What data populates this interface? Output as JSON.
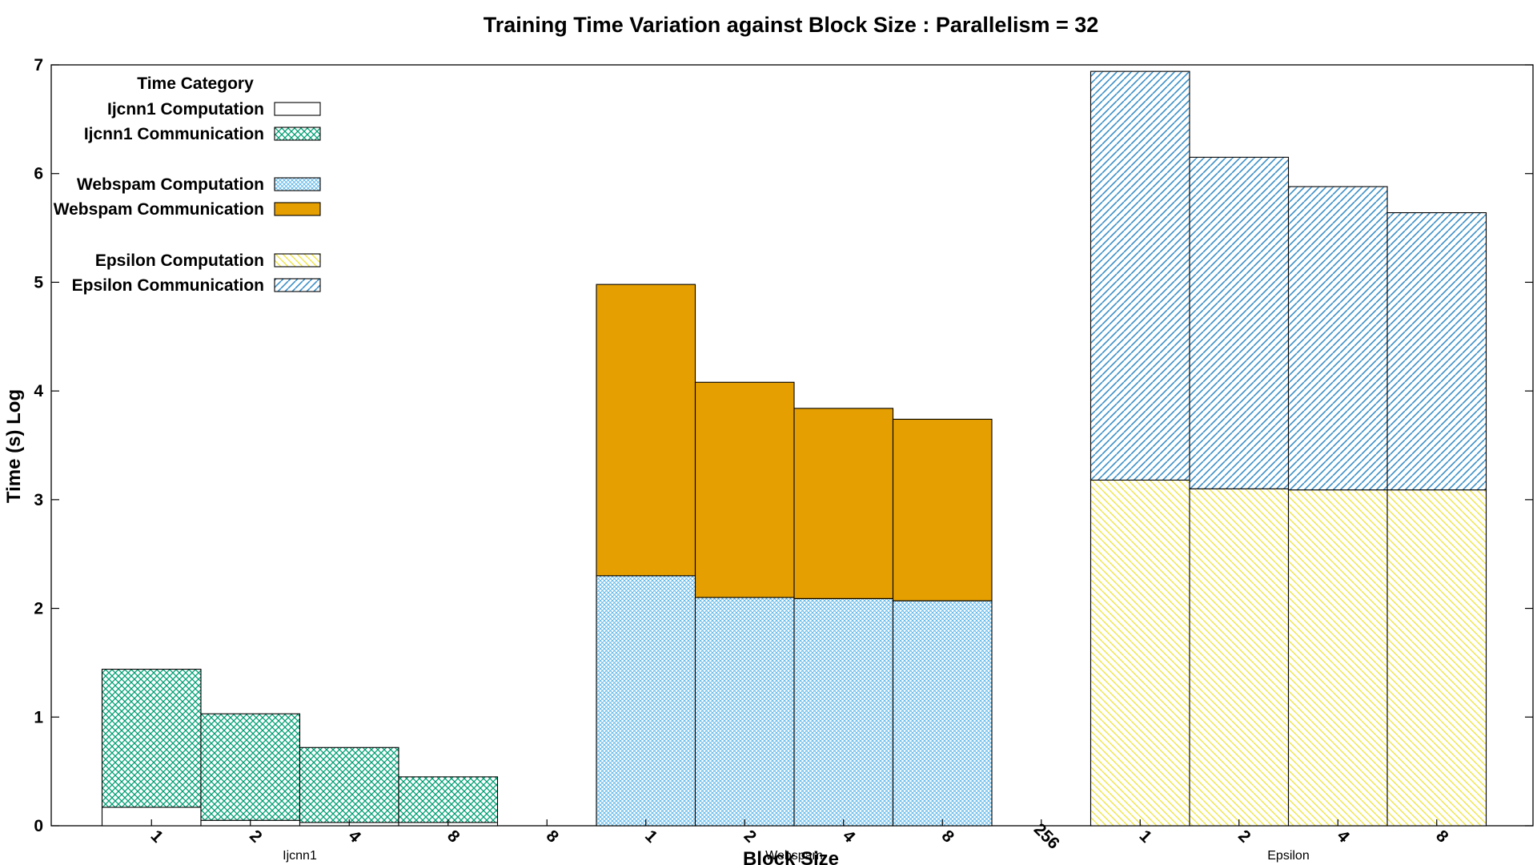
{
  "chart_data": {
    "type": "bar",
    "stacked": true,
    "title": "Training Time Variation against Block Size : Parallelism = 32",
    "xlabel": "Block Size",
    "ylabel": "Time (s) Log",
    "ylim": [
      0,
      7
    ],
    "yticks": [
      "0",
      "1",
      "2",
      "3",
      "4",
      "5",
      "6",
      "7"
    ],
    "legend": {
      "title": "Time Category",
      "position": "top-left"
    },
    "groups": [
      {
        "name": "Ijcnn1",
        "categories": [
          "1",
          "2",
          "4",
          "8"
        ],
        "extra_tick": "8",
        "series": [
          {
            "name": "Ijcnn1 Computation",
            "values": [
              0.17,
              0.05,
              0.03,
              0.03
            ]
          },
          {
            "name": "Ijcnn1 Communication",
            "values": [
              1.27,
              0.98,
              0.69,
              0.42
            ]
          }
        ]
      },
      {
        "name": "Webspam",
        "categories": [
          "1",
          "2",
          "4",
          "8"
        ],
        "extra_tick": "256",
        "series": [
          {
            "name": "Webspam Computation",
            "values": [
              2.3,
              2.1,
              2.09,
              2.07
            ]
          },
          {
            "name": "Webspam Communication",
            "values": [
              2.68,
              1.98,
              1.75,
              1.67
            ]
          }
        ]
      },
      {
        "name": "Epsilon",
        "categories": [
          "1",
          "2",
          "4",
          "8"
        ],
        "series": [
          {
            "name": "Epsilon Computation",
            "values": [
              3.18,
              3.1,
              3.09,
              3.09
            ]
          },
          {
            "name": "Epsilon Communication",
            "values": [
              3.76,
              3.05,
              2.79,
              2.55
            ]
          }
        ]
      }
    ],
    "colors": {
      "ijcnn1_computation": "#ffffff",
      "ijcnn1_communication": "#009e73",
      "webspam_computation": "#56b4e9",
      "webspam_communication": "#e69f00",
      "epsilon_computation": "#f0e442",
      "epsilon_communication": "#0072b2"
    }
  }
}
